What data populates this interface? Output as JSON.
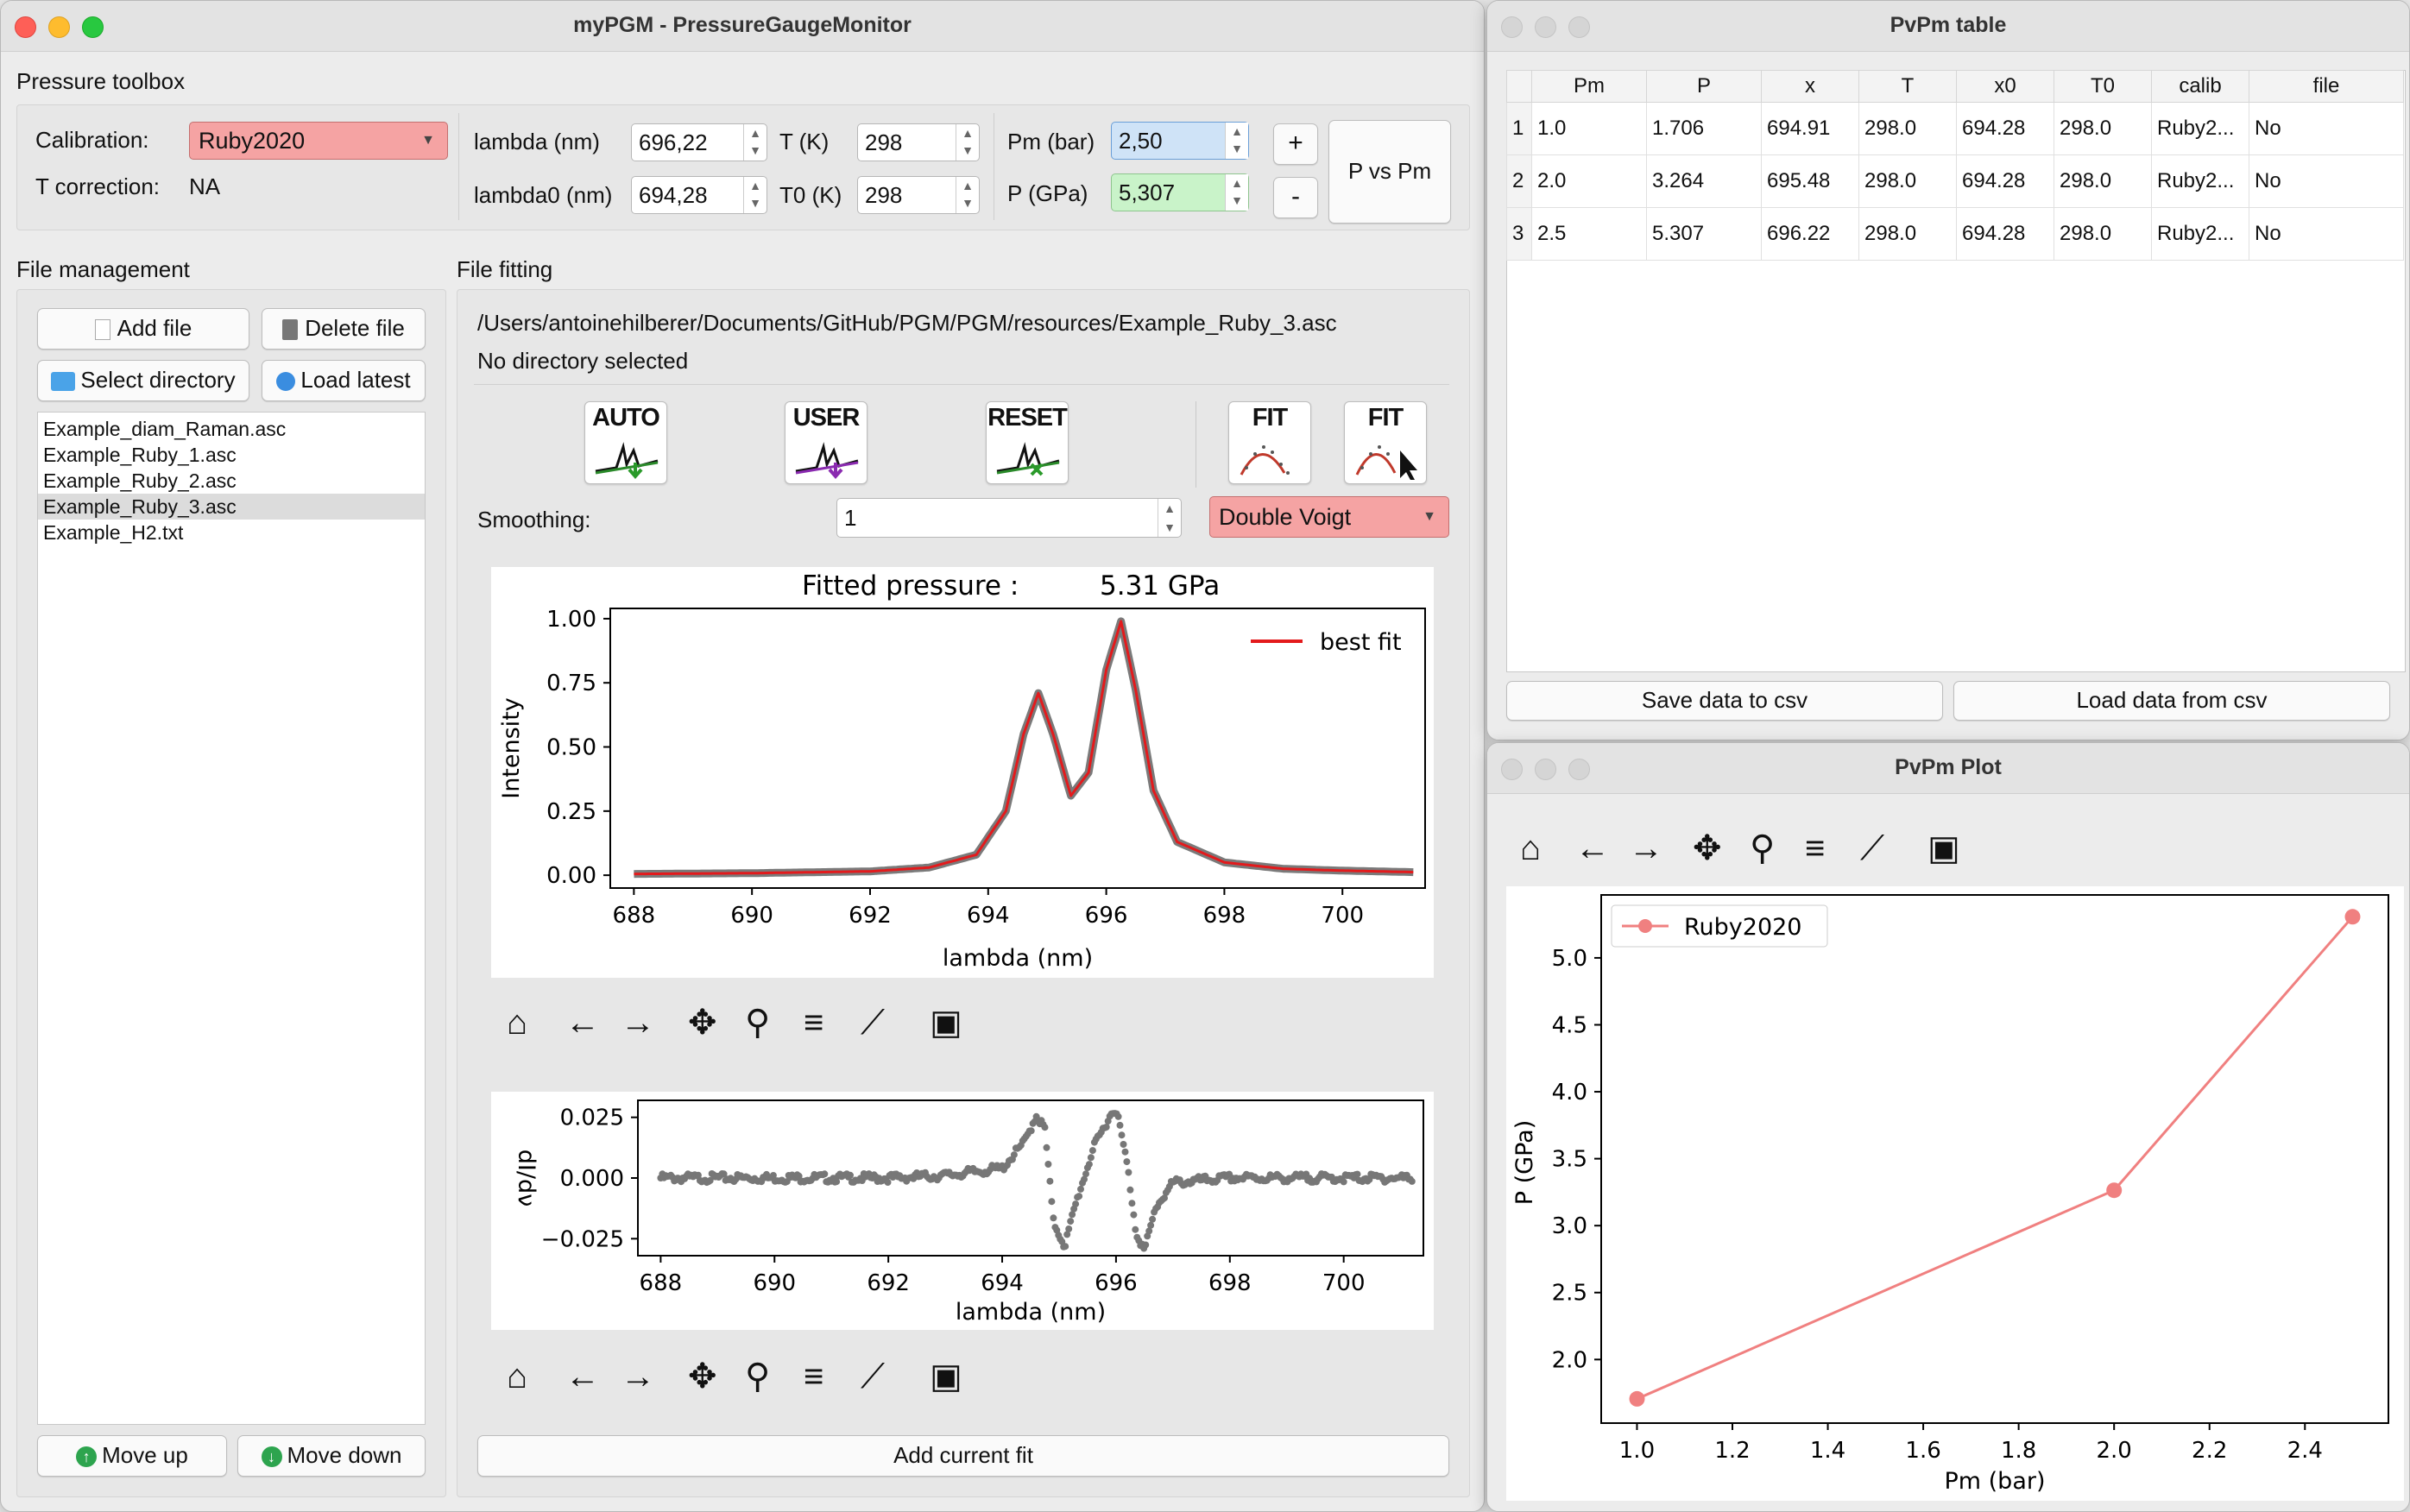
{
  "main": {
    "title": "myPGM - PressureGaugeMonitor",
    "toolbox_label": "Pressure toolbox",
    "calibration_label": "Calibration:",
    "calibration_value": "Ruby2020",
    "tcorr_label": "T correction:",
    "tcorr_value": "NA",
    "lambda_label": "lambda (nm)",
    "lambda_value": "696,22",
    "lambda0_label": "lambda0 (nm)",
    "lambda0_value": "694,28",
    "t_label": "T (K)",
    "t_value": "298",
    "t0_label": "T0 (K)",
    "t0_value": "298",
    "pm_label": "Pm (bar)",
    "pm_value": "2,50",
    "p_label": "P (GPa)",
    "p_value": "5,307",
    "plus": "+",
    "minus": "-",
    "pvspm": "P vs Pm",
    "fm_label": "File management",
    "add_file": "Add file",
    "delete_file": "Delete file",
    "select_dir": "Select directory",
    "load_latest": "Load latest",
    "files": [
      "Example_diam_Raman.asc",
      "Example_Ruby_1.asc",
      "Example_Ruby_2.asc",
      "Example_Ruby_3.asc",
      "Example_H2.txt"
    ],
    "move_up": "Move up",
    "move_down": "Move down",
    "ff_label": "File fitting",
    "path": "/Users/antoinehilberer/Documents/GitHub/PGM/PGM/resources/Example_Ruby_3.asc",
    "dir_status": "No directory selected",
    "btn_auto": "AUTO",
    "btn_user": "USER",
    "btn_reset": "RESET",
    "btn_fit1": "FIT",
    "btn_fit2": "FIT",
    "smoothing_label": "Smoothing:",
    "smoothing_value": "1",
    "fit_model": "Double Voigt",
    "add_fit": "Add current fit"
  },
  "spectrum_chart": {
    "title_label": "Fitted pressure :",
    "title_value": "5.31 GPa",
    "xlabel": "lambda (nm)",
    "ylabel": "Intensity",
    "legend": "best fit",
    "xticks": [
      "688",
      "690",
      "692",
      "694",
      "696",
      "698",
      "700"
    ],
    "yticks": [
      "1.00",
      "0.75",
      "0.50",
      "0.25",
      "0.00"
    ]
  },
  "deriv_chart": {
    "xlabel": "lambda (nm)",
    "ylabel": "dI/dν",
    "xticks": [
      "688",
      "690",
      "692",
      "694",
      "696",
      "698",
      "700"
    ],
    "yticks": [
      "0.025",
      "0.000",
      "−0.025"
    ]
  },
  "table_window": {
    "title": "PvPm table",
    "columns": [
      "Pm",
      "P",
      "x",
      "T",
      "x0",
      "T0",
      "calib",
      "file"
    ],
    "rows": [
      [
        "1",
        "1.0",
        "1.706",
        "694.91",
        "298.0",
        "694.28",
        "298.0",
        "Ruby2...",
        "No"
      ],
      [
        "2",
        "2.0",
        "3.264",
        "695.48",
        "298.0",
        "694.28",
        "298.0",
        "Ruby2...",
        "No"
      ],
      [
        "3",
        "2.5",
        "5.307",
        "696.22",
        "298.0",
        "694.28",
        "298.0",
        "Ruby2...",
        "No"
      ]
    ],
    "save_csv": "Save data to csv",
    "load_csv": "Load data from csv"
  },
  "plot_window": {
    "title": "PvPm Plot"
  },
  "chart_data": [
    {
      "type": "line",
      "title": "Fitted pressure : 5.31 GPa",
      "xlabel": "lambda (nm)",
      "ylabel": "Intensity",
      "xlim": [
        687.6,
        701.4
      ],
      "ylim": [
        -0.05,
        1.04
      ],
      "series": [
        {
          "name": "best fit",
          "color": "#d62728",
          "x": [
            688,
            690,
            692,
            693,
            693.8,
            694.3,
            694.6,
            694.85,
            695.1,
            695.4,
            695.7,
            696.0,
            696.25,
            696.5,
            696.8,
            697.2,
            698,
            699,
            700,
            701.2
          ],
          "y": [
            0.005,
            0.008,
            0.015,
            0.03,
            0.08,
            0.25,
            0.55,
            0.71,
            0.55,
            0.31,
            0.4,
            0.8,
            0.99,
            0.72,
            0.33,
            0.13,
            0.05,
            0.025,
            0.018,
            0.012
          ]
        }
      ]
    },
    {
      "type": "scatter",
      "xlabel": "lambda (nm)",
      "ylabel": "dI/dν",
      "xlim": [
        687.6,
        701.4
      ],
      "ylim": [
        -0.032,
        0.032
      ],
      "series": [
        {
          "color": "#777777",
          "x": [
            688,
            690,
            692,
            693,
            694,
            694.4,
            694.6,
            694.75,
            694.9,
            695.1,
            695.3,
            695.6,
            695.9,
            696.0,
            696.2,
            696.35,
            696.5,
            696.7,
            697,
            698,
            699,
            700,
            701.2
          ],
          "y": [
            0,
            0,
            0,
            0.001,
            0.004,
            0.015,
            0.026,
            0.02,
            -0.018,
            -0.028,
            -0.01,
            0.012,
            0.026,
            0.029,
            0.005,
            -0.022,
            -0.03,
            -0.012,
            -0.002,
            0,
            0,
            0,
            0
          ]
        }
      ]
    },
    {
      "type": "line",
      "xlabel": "Pm (bar)",
      "ylabel": "P (GPa)",
      "xlim": [
        0.925,
        2.575
      ],
      "ylim": [
        1.525,
        5.47
      ],
      "xticks": [
        "1.0",
        "1.2",
        "1.4",
        "1.6",
        "1.8",
        "2.0",
        "2.2",
        "2.4"
      ],
      "yticks": [
        "5.0",
        "4.5",
        "4.0",
        "3.5",
        "3.0",
        "2.5",
        "2.0"
      ],
      "series": [
        {
          "name": "Ruby2020",
          "color": "#f08080",
          "x": [
            1.0,
            2.0,
            2.5
          ],
          "y": [
            1.706,
            3.264,
            5.307
          ]
        }
      ]
    }
  ]
}
